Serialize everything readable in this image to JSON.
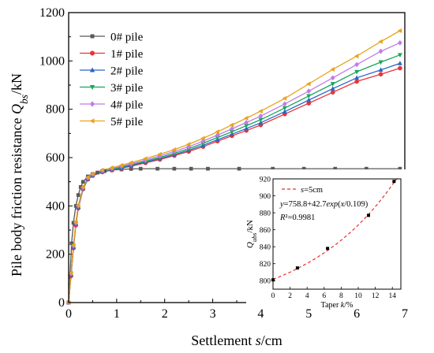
{
  "chart_data": [
    {
      "type": "line",
      "xlabel": "Settlement s/cm",
      "ylabel": "Pile body friction resistance Q_bs/kN",
      "xlim": [
        0,
        7
      ],
      "ylim": [
        0,
        1200
      ],
      "xticks": [
        "0",
        "1",
        "2",
        "3",
        "4",
        "5",
        "6",
        "7"
      ],
      "yticks": [
        "0",
        "200",
        "400",
        "600",
        "800",
        "1000",
        "1200"
      ],
      "legend_position": "top-left",
      "grid": false,
      "series": [
        {
          "name": "0# pile",
          "color": "#595959",
          "marker": "square",
          "x": [
            0,
            0.03,
            0.06,
            0.1,
            0.15,
            0.2,
            0.25,
            0.3,
            0.4,
            0.5,
            0.6,
            0.75,
            0.9,
            1.1,
            1.3,
            1.5,
            1.85,
            2.2,
            2.55,
            2.9,
            3.55,
            4.25,
            4.9,
            5.55,
            6.2,
            6.9
          ],
          "y": [
            0,
            110,
            245,
            330,
            400,
            445,
            478,
            500,
            522,
            532,
            538,
            544,
            548,
            551,
            553,
            554,
            554,
            554,
            554,
            554,
            554,
            554,
            554,
            554,
            554,
            554
          ]
        },
        {
          "name": "1# pile",
          "color": "#e8343a",
          "marker": "circle",
          "x": [
            0,
            0.05,
            0.1,
            0.15,
            0.2,
            0.3,
            0.4,
            0.5,
            0.7,
            0.9,
            1.1,
            1.3,
            1.6,
            1.9,
            2.2,
            2.5,
            2.8,
            3.1,
            3.4,
            3.7,
            4.0,
            4.5,
            5.0,
            5.5,
            6.0,
            6.5,
            6.9
          ],
          "y": [
            0,
            110,
            225,
            320,
            390,
            470,
            510,
            525,
            540,
            548,
            556,
            564,
            578,
            592,
            608,
            625,
            645,
            668,
            690,
            712,
            735,
            780,
            825,
            870,
            915,
            945,
            970
          ]
        },
        {
          "name": "2# pile",
          "color": "#2a66c7",
          "marker": "triangle-up",
          "x": [
            0,
            0.05,
            0.1,
            0.15,
            0.2,
            0.3,
            0.4,
            0.5,
            0.7,
            0.9,
            1.1,
            1.3,
            1.6,
            1.9,
            2.2,
            2.5,
            2.8,
            3.1,
            3.4,
            3.7,
            4.0,
            4.5,
            5.0,
            5.5,
            6.0,
            6.5,
            6.9
          ],
          "y": [
            0,
            115,
            230,
            325,
            395,
            472,
            512,
            527,
            542,
            550,
            558,
            567,
            581,
            596,
            612,
            630,
            651,
            674,
            697,
            720,
            744,
            790,
            838,
            885,
            930,
            963,
            990
          ]
        },
        {
          "name": "3# pile",
          "color": "#15a85a",
          "marker": "triangle-down",
          "x": [
            0,
            0.05,
            0.1,
            0.15,
            0.2,
            0.3,
            0.4,
            0.5,
            0.7,
            0.9,
            1.1,
            1.3,
            1.6,
            1.9,
            2.2,
            2.5,
            2.8,
            3.1,
            3.4,
            3.7,
            4.0,
            4.5,
            5.0,
            5.5,
            6.0,
            6.5,
            6.9
          ],
          "y": [
            0,
            118,
            232,
            328,
            398,
            474,
            514,
            529,
            544,
            552,
            561,
            570,
            585,
            601,
            618,
            637,
            659,
            683,
            707,
            732,
            757,
            805,
            855,
            905,
            955,
            995,
            1025
          ]
        },
        {
          "name": "4# pile",
          "color": "#c27be8",
          "marker": "diamond",
          "x": [
            0,
            0.05,
            0.1,
            0.15,
            0.2,
            0.3,
            0.4,
            0.5,
            0.7,
            0.9,
            1.1,
            1.3,
            1.6,
            1.9,
            2.2,
            2.5,
            2.8,
            3.1,
            3.4,
            3.7,
            4.0,
            4.5,
            5.0,
            5.5,
            6.0,
            6.5,
            6.9
          ],
          "y": [
            0,
            120,
            235,
            330,
            400,
            476,
            516,
            531,
            546,
            555,
            564,
            574,
            590,
            607,
            625,
            645,
            668,
            693,
            719,
            745,
            772,
            822,
            875,
            930,
            985,
            1040,
            1075
          ]
        },
        {
          "name": "5# pile",
          "color": "#e8a41c",
          "marker": "triangle-left",
          "x": [
            0,
            0.05,
            0.1,
            0.15,
            0.2,
            0.3,
            0.4,
            0.5,
            0.7,
            0.9,
            1.1,
            1.3,
            1.6,
            1.9,
            2.2,
            2.5,
            2.8,
            3.1,
            3.4,
            3.7,
            4.0,
            4.5,
            5.0,
            5.5,
            6.0,
            6.5,
            6.9
          ],
          "y": [
            0,
            122,
            238,
            333,
            403,
            478,
            518,
            533,
            548,
            558,
            568,
            579,
            596,
            614,
            633,
            655,
            680,
            707,
            735,
            763,
            792,
            845,
            905,
            965,
            1020,
            1080,
            1125
          ]
        }
      ]
    },
    {
      "type": "scatter",
      "xlabel": "Taper k/%",
      "ylabel": "Q_ubs/kN",
      "xlim": [
        0,
        15
      ],
      "ylim": [
        790,
        920
      ],
      "xticks": [
        "0",
        "2",
        "4",
        "6",
        "8",
        "10",
        "12",
        "14"
      ],
      "yticks": [
        "800",
        "820",
        "840",
        "860",
        "880",
        "900",
        "920"
      ],
      "legend_position": "top-left",
      "legend_entry": "s=5cm",
      "equation": "y=758.8+42.7exp(x/0.109)",
      "r2": "R²=0.9981",
      "points": {
        "x": [
          0,
          2.86,
          6.4,
          11.2,
          14.2
        ],
        "y": [
          801,
          815,
          838,
          877,
          917
        ]
      },
      "fit": {
        "a": 758.8,
        "b": 42.7,
        "c": 0.109,
        "note": "percent taper k divided by 100 inside exp"
      },
      "point_color": "#000000",
      "fit_color": "#e83030"
    }
  ]
}
